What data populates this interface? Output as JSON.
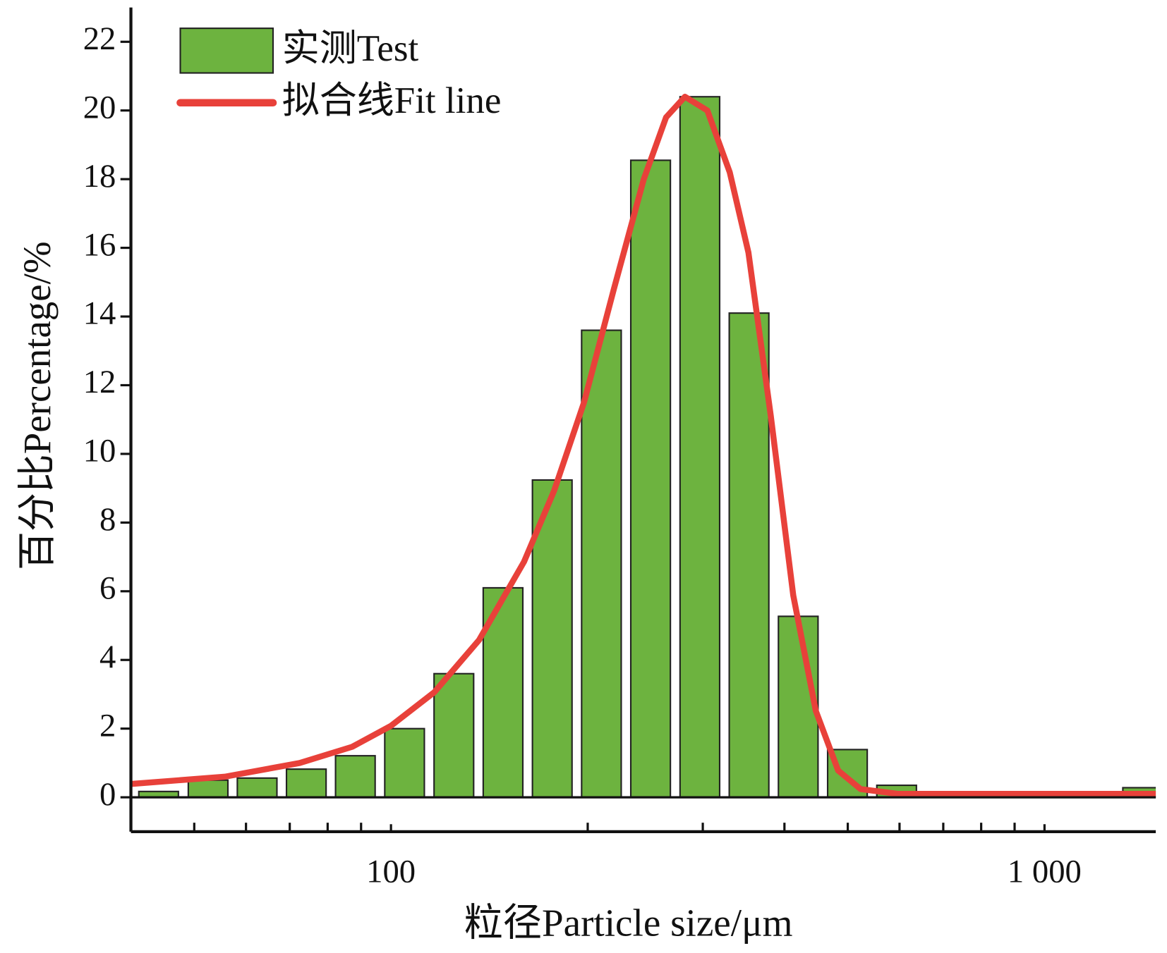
{
  "chart_data": {
    "type": "bar",
    "xlabel": "粒径Particle size/μm",
    "ylabel": "百分比Percentage/%",
    "xscale": "log",
    "xlim": [
      40,
      1480
    ],
    "xticks": [
      100,
      {
        "value": 1000,
        "label": "1 000"
      }
    ],
    "xminorticks": [
      50,
      60,
      70,
      80,
      90,
      200,
      300,
      400,
      500,
      600,
      700,
      800,
      900
    ],
    "ylim": [
      -1,
      23
    ],
    "yticks": [
      0,
      2,
      4,
      6,
      8,
      10,
      12,
      14,
      16,
      18,
      20,
      22
    ],
    "legend": "upper left",
    "series": [
      {
        "name": "实测Test",
        "type": "bar",
        "color": "#6db33f",
        "x": [
          44.1,
          52.5,
          62.4,
          74.2,
          88.2,
          104.9,
          124.8,
          148.4,
          176.5,
          209.9,
          249.6,
          296.9,
          353.1,
          419.9,
          499.4,
          593.9,
          1413
        ],
        "values": [
          0.17,
          0.5,
          0.56,
          0.82,
          1.21,
          2.0,
          3.6,
          6.1,
          9.24,
          13.6,
          18.55,
          20.4,
          14.1,
          5.27,
          1.39,
          0.35,
          0.28
        ]
      },
      {
        "name": "拟合线Fit line",
        "type": "line",
        "color": "#e8413a",
        "x": [
          40.1,
          55.7,
          72.5,
          87.2,
          100,
          116.5,
          136.4,
          159.8,
          177.6,
          197.4,
          219.3,
          243.7,
          263.6,
          281.7,
          304.8,
          329.9,
          352.4,
          381.3,
          412.6,
          446.7,
          483.3,
          523,
          596.8,
          1480
        ],
        "values": [
          0.39,
          0.6,
          1.0,
          1.47,
          2.08,
          3.06,
          4.58,
          6.86,
          8.92,
          11.5,
          14.8,
          18.0,
          19.8,
          20.4,
          20.0,
          18.2,
          15.86,
          11.1,
          5.88,
          2.52,
          0.78,
          0.24,
          0.1,
          0.1
        ]
      }
    ]
  }
}
